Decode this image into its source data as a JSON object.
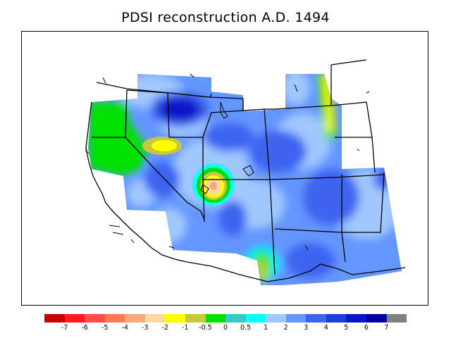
{
  "title": "PDSI reconstruction A.D. 1494",
  "legend": {
    "colors": [
      "#c80000",
      "#ff1a1a",
      "#ff4a4a",
      "#ff7a4a",
      "#ffa878",
      "#ffd7a0",
      "#ffff00",
      "#c8c83c",
      "#00e100",
      "#3cc8c8",
      "#00ffff",
      "#a0c8ff",
      "#6496ff",
      "#3c64f0",
      "#1e3cdc",
      "#0a14c8",
      "#0000a0",
      "#808080"
    ],
    "labels": [
      "-7",
      "-6",
      "-5",
      "-4",
      "-3",
      "-2",
      "-1",
      "-0.5",
      "0",
      "0.5",
      "1",
      "2",
      "3",
      "4",
      "5",
      "6",
      "7"
    ]
  }
}
